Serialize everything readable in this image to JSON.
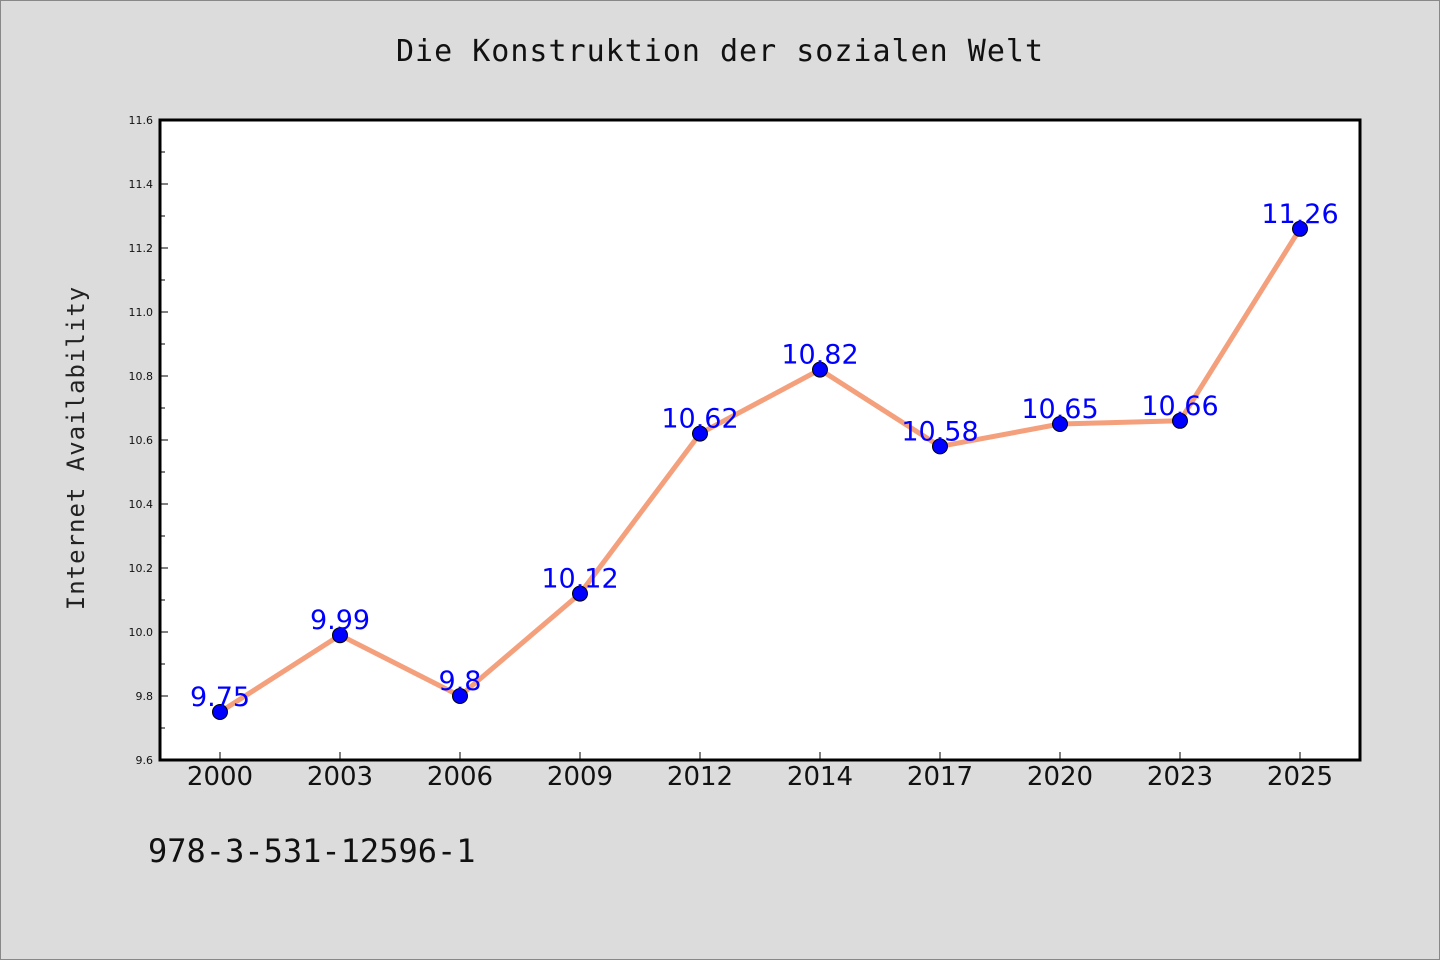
{
  "chart_data": {
    "type": "line",
    "title": "Die Konstruktion der sozialen Welt",
    "xlabel": "",
    "ylabel": "Internet Availability",
    "categories": [
      "2000",
      "2003",
      "2006",
      "2009",
      "2012",
      "2014",
      "2017",
      "2020",
      "2023",
      "2025"
    ],
    "series": [
      {
        "values": [
          9.75,
          9.99,
          9.8,
          10.12,
          10.62,
          10.82,
          10.58,
          10.65,
          10.66,
          11.26
        ],
        "labels": [
          "9.75",
          "9.99",
          "9.8",
          "10.12",
          "10.62",
          "10.82",
          "10.58",
          "10.65",
          "10.66",
          "11.26"
        ]
      }
    ],
    "ylim": [
      9.6,
      11.6
    ],
    "yticks": [
      "9.6",
      "9.8",
      "10.0",
      "10.2",
      "10.4",
      "10.6",
      "10.8",
      "11.0",
      "11.2",
      "11.4",
      "11.6"
    ],
    "grid": false,
    "line_color": "#f4a07c",
    "marker_color": "#0000ff",
    "label_color": "#0000ff"
  },
  "footer": {
    "code": "978-3-531-12596-1"
  }
}
